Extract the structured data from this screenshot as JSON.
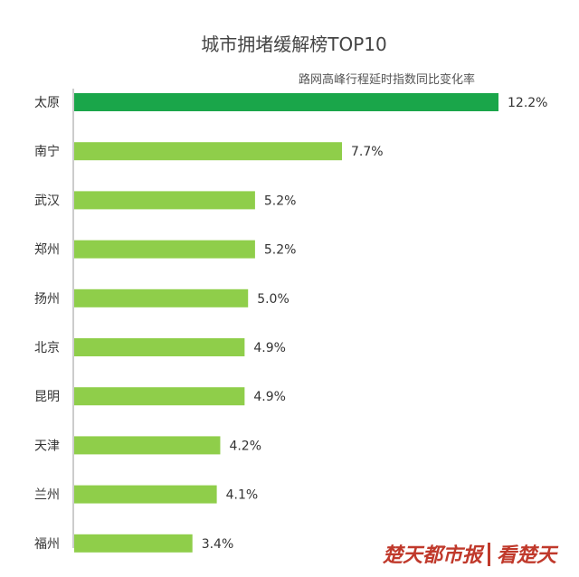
{
  "chart_data": {
    "type": "bar",
    "orientation": "horizontal",
    "title": "城市拥堵缓解榜TOP10",
    "subtitle": "路网高峰行程延时指数同比变化率",
    "categories": [
      "太原",
      "南宁",
      "武汉",
      "郑州",
      "扬州",
      "北京",
      "昆明",
      "天津",
      "兰州",
      "福州"
    ],
    "values": [
      12.2,
      7.7,
      5.2,
      5.2,
      5.0,
      4.9,
      4.9,
      4.2,
      4.1,
      3.4
    ],
    "value_labels": [
      "12.2%",
      "7.7%",
      "5.2%",
      "5.2%",
      "5.0%",
      "4.9%",
      "4.9%",
      "4.2%",
      "4.1%",
      "3.4%"
    ],
    "unit": "%",
    "xlim": [
      0,
      12.2
    ],
    "grid": false,
    "legend": "none",
    "colors": {
      "highlight": "#1aa64a",
      "bar": "#8fce4a",
      "axis": "#999999"
    }
  },
  "watermark": {
    "left": "楚天都市报",
    "right": "看楚天"
  }
}
